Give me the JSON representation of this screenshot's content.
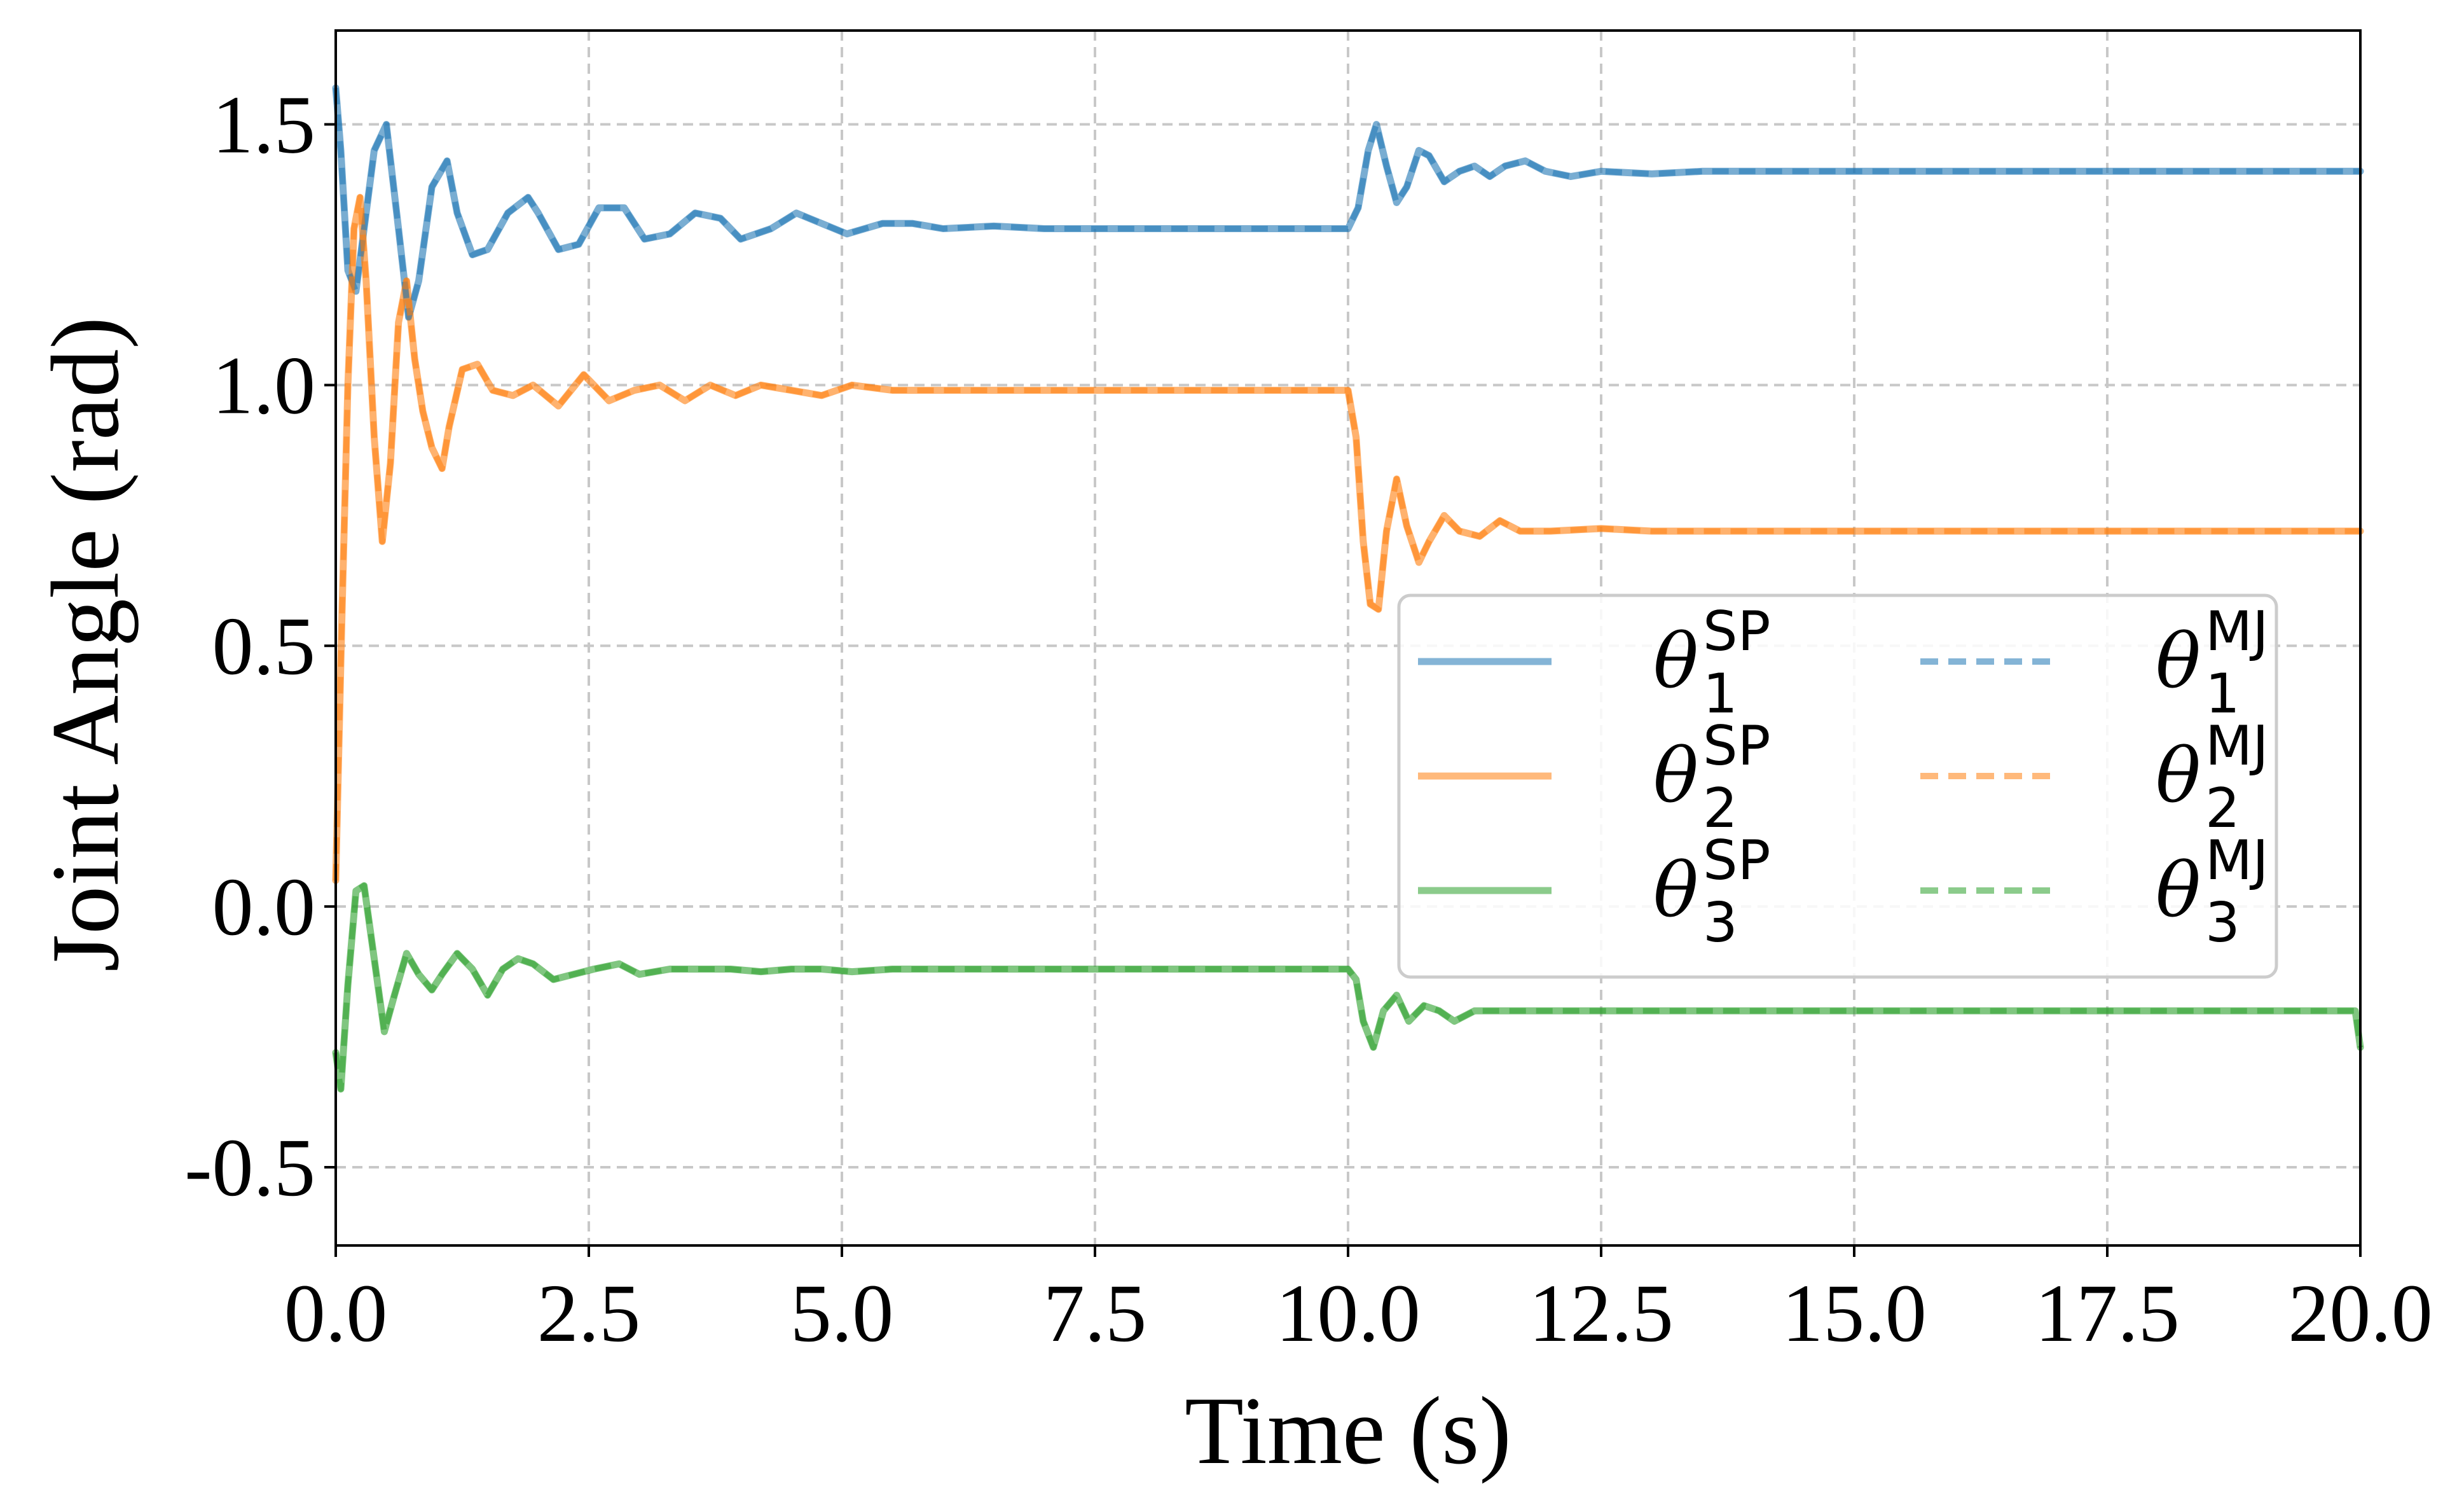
{
  "chart_data": {
    "type": "line",
    "xlabel": "Time (s)",
    "ylabel": "Joint Angle (rad)",
    "xlim": [
      0,
      20
    ],
    "ylim": [
      -0.65,
      1.68
    ],
    "xticks": [
      0,
      2.5,
      5,
      7.5,
      10,
      12.5,
      15,
      17.5,
      20
    ],
    "xtick_labels": [
      "0.0",
      "2.5",
      "5.0",
      "7.5",
      "10.0",
      "12.5",
      "15.0",
      "17.5",
      "20.0"
    ],
    "yticks": [
      -0.5,
      0,
      0.5,
      1.0,
      1.5
    ],
    "ytick_labels": [
      "-0.5",
      "0.0",
      "0.5",
      "1.0",
      "1.5"
    ],
    "grid": true,
    "legend_position": "center-right",
    "legend_columns": 2,
    "series": [
      {
        "key": "th1_sp",
        "symbol": "θ",
        "sub": "1",
        "sup": "SP",
        "color": "#1f77b4",
        "style": "solid",
        "x": [
          0,
          0.05,
          0.12,
          0.2,
          0.28,
          0.38,
          0.5,
          0.62,
          0.72,
          0.82,
          0.95,
          1.1,
          1.2,
          1.35,
          1.5,
          1.7,
          1.9,
          2.0,
          2.2,
          2.4,
          2.6,
          2.85,
          3.05,
          3.3,
          3.55,
          3.8,
          4.0,
          4.3,
          4.55,
          4.8,
          5.05,
          5.4,
          5.7,
          6.0,
          6.5,
          7.0,
          7.5,
          8.0,
          8.5,
          9.0,
          9.5,
          10.0,
          10.1,
          10.2,
          10.28,
          10.38,
          10.48,
          10.58,
          10.7,
          10.8,
          10.95,
          11.1,
          11.25,
          11.4,
          11.55,
          11.75,
          11.95,
          12.2,
          12.5,
          13.0,
          13.5,
          14.0,
          15.0,
          16.0,
          17.0,
          18.0,
          19.0,
          20.0
        ],
        "y": [
          1.57,
          1.45,
          1.22,
          1.18,
          1.3,
          1.45,
          1.5,
          1.3,
          1.13,
          1.2,
          1.38,
          1.43,
          1.33,
          1.25,
          1.26,
          1.33,
          1.36,
          1.33,
          1.26,
          1.27,
          1.34,
          1.34,
          1.28,
          1.29,
          1.33,
          1.32,
          1.28,
          1.3,
          1.33,
          1.31,
          1.29,
          1.31,
          1.31,
          1.3,
          1.305,
          1.3,
          1.3,
          1.3,
          1.3,
          1.3,
          1.3,
          1.3,
          1.34,
          1.45,
          1.5,
          1.42,
          1.35,
          1.38,
          1.45,
          1.44,
          1.39,
          1.41,
          1.42,
          1.4,
          1.42,
          1.43,
          1.41,
          1.4,
          1.41,
          1.405,
          1.41,
          1.41,
          1.41,
          1.41,
          1.41,
          1.41,
          1.41,
          1.41
        ]
      },
      {
        "key": "th2_sp",
        "symbol": "θ",
        "sub": "2",
        "sup": "SP",
        "color": "#ff7f0e",
        "style": "solid",
        "x": [
          0,
          0.06,
          0.12,
          0.18,
          0.24,
          0.3,
          0.38,
          0.46,
          0.54,
          0.62,
          0.7,
          0.78,
          0.86,
          0.95,
          1.05,
          1.12,
          1.25,
          1.4,
          1.55,
          1.75,
          1.95,
          2.2,
          2.45,
          2.7,
          2.95,
          3.2,
          3.45,
          3.7,
          3.95,
          4.2,
          4.5,
          4.8,
          5.1,
          5.5,
          6.0,
          6.5,
          7.0,
          8.0,
          9.0,
          10.0,
          10.08,
          10.15,
          10.22,
          10.3,
          10.38,
          10.48,
          10.58,
          10.7,
          10.8,
          10.95,
          11.1,
          11.3,
          11.5,
          11.7,
          12.0,
          12.5,
          13.0,
          14.0,
          15.0,
          16.0,
          17.0,
          18.0,
          19.0,
          20.0
        ],
        "y": [
          0.05,
          0.55,
          1.0,
          1.3,
          1.36,
          1.2,
          0.9,
          0.7,
          0.85,
          1.12,
          1.2,
          1.05,
          0.95,
          0.88,
          0.84,
          0.92,
          1.03,
          1.04,
          0.99,
          0.98,
          1.0,
          0.96,
          1.02,
          0.97,
          0.99,
          1.0,
          0.97,
          1.0,
          0.98,
          1.0,
          0.99,
          0.98,
          1.0,
          0.99,
          0.99,
          0.99,
          0.99,
          0.99,
          0.99,
          0.99,
          0.9,
          0.7,
          0.58,
          0.57,
          0.72,
          0.82,
          0.73,
          0.66,
          0.7,
          0.75,
          0.72,
          0.71,
          0.74,
          0.72,
          0.72,
          0.725,
          0.72,
          0.72,
          0.72,
          0.72,
          0.72,
          0.72,
          0.72,
          0.72
        ]
      },
      {
        "key": "th3_sp",
        "symbol": "θ",
        "sub": "3",
        "sup": "SP",
        "color": "#2ca02c",
        "style": "solid",
        "x": [
          0,
          0.05,
          0.12,
          0.2,
          0.28,
          0.38,
          0.48,
          0.58,
          0.7,
          0.82,
          0.95,
          1.05,
          1.2,
          1.35,
          1.5,
          1.65,
          1.8,
          1.95,
          2.15,
          2.35,
          2.55,
          2.8,
          3.0,
          3.3,
          3.6,
          3.9,
          4.2,
          4.5,
          4.8,
          5.1,
          5.5,
          6.0,
          7.0,
          8.0,
          9.0,
          10.0,
          10.08,
          10.15,
          10.25,
          10.35,
          10.48,
          10.6,
          10.75,
          10.9,
          11.05,
          11.25,
          11.5,
          12.0,
          13.0,
          14.0,
          15.0,
          16.0,
          17.0,
          18.0,
          19.0,
          19.95,
          20.0
        ],
        "y": [
          -0.28,
          -0.35,
          -0.15,
          0.03,
          0.04,
          -0.1,
          -0.24,
          -0.17,
          -0.09,
          -0.13,
          -0.16,
          -0.13,
          -0.09,
          -0.12,
          -0.17,
          -0.12,
          -0.1,
          -0.11,
          -0.14,
          -0.13,
          -0.12,
          -0.11,
          -0.13,
          -0.12,
          -0.12,
          -0.12,
          -0.125,
          -0.12,
          -0.12,
          -0.125,
          -0.12,
          -0.12,
          -0.12,
          -0.12,
          -0.12,
          -0.12,
          -0.14,
          -0.22,
          -0.27,
          -0.2,
          -0.17,
          -0.22,
          -0.19,
          -0.2,
          -0.22,
          -0.2,
          -0.2,
          -0.2,
          -0.2,
          -0.2,
          -0.2,
          -0.2,
          -0.2,
          -0.2,
          -0.2,
          -0.2,
          -0.27
        ]
      },
      {
        "key": "th1_mj",
        "symbol": "θ",
        "sub": "1",
        "sup": "MJ",
        "color": "#1f77b4",
        "style": "dashed",
        "same_as": "th1_sp"
      },
      {
        "key": "th2_mj",
        "symbol": "θ",
        "sub": "2",
        "sup": "MJ",
        "color": "#ff7f0e",
        "style": "dashed",
        "same_as": "th2_sp"
      },
      {
        "key": "th3_mj",
        "symbol": "θ",
        "sub": "3",
        "sup": "MJ",
        "color": "#2ca02c",
        "style": "dashed",
        "same_as": "th3_sp"
      }
    ]
  }
}
